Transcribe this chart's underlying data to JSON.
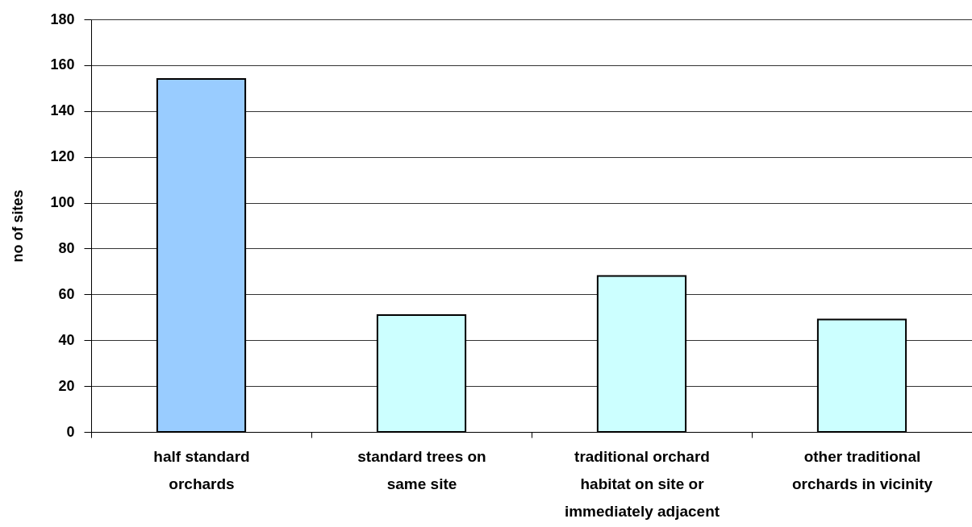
{
  "chart_data": {
    "type": "bar",
    "ylabel": "no of sites",
    "categories": [
      "half standard orchards",
      "standard trees on same site",
      "traditional orchard habitat on site or immediately adjacent",
      "other traditional orchards in vicinity"
    ],
    "values": [
      154,
      51,
      68,
      49
    ],
    "colors": [
      "#99ccff",
      "#ccffff",
      "#ccffff",
      "#ccffff"
    ],
    "ylim": [
      0,
      180
    ],
    "yticks": [
      0,
      20,
      40,
      60,
      80,
      100,
      120,
      140,
      160,
      180
    ],
    "grid": "y"
  }
}
